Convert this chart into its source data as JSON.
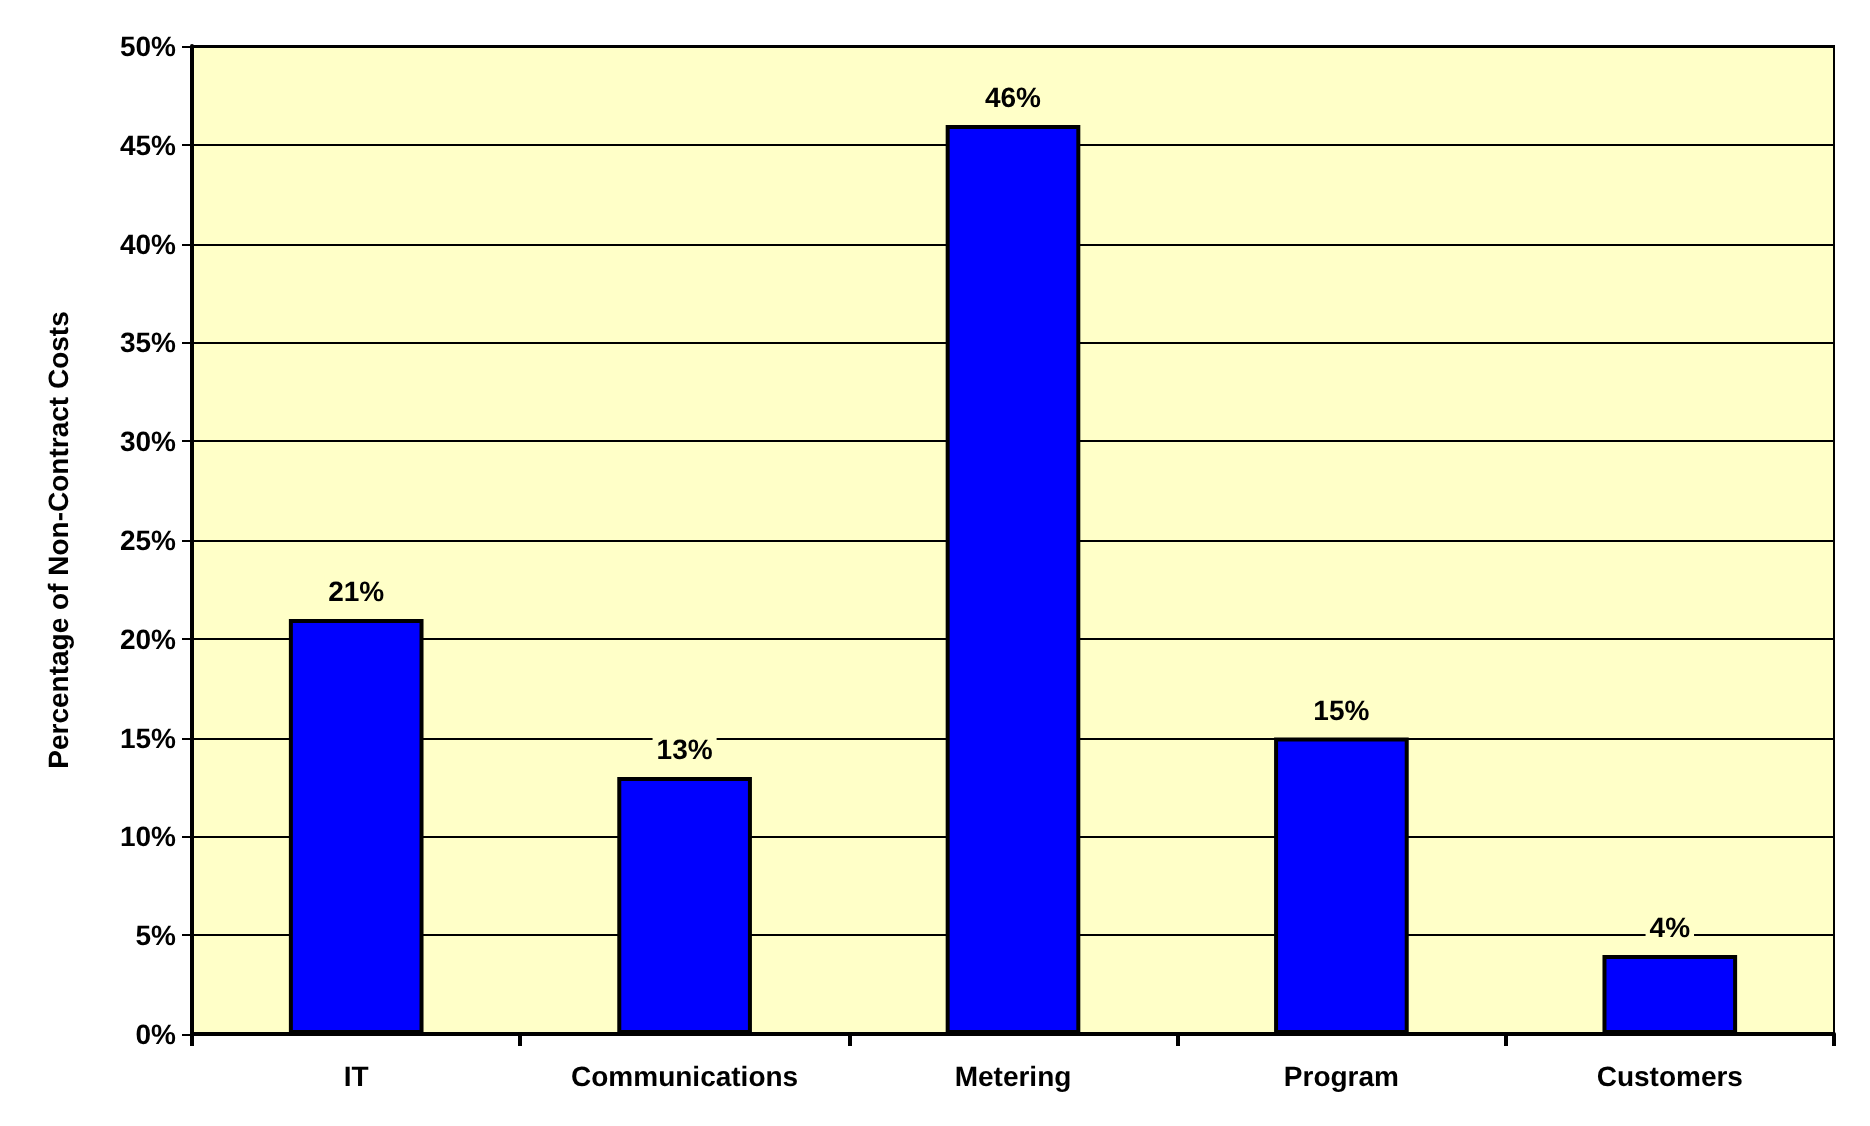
{
  "chart_data": {
    "type": "bar",
    "ylabel": "Percentage of Non-Contract Costs",
    "categories": [
      "IT",
      "Communications",
      "Metering",
      "Program",
      "Customers"
    ],
    "values": [
      21,
      13,
      46,
      15,
      4
    ],
    "value_labels": [
      "21%",
      "13%",
      "46%",
      "15%",
      "4%"
    ],
    "color": "#0000ff",
    "ylim": [
      0,
      50
    ],
    "yticks": [
      {
        "value": 0,
        "label": "0%"
      },
      {
        "value": 5,
        "label": "5%"
      },
      {
        "value": 10,
        "label": "10%"
      },
      {
        "value": 15,
        "label": "15%"
      },
      {
        "value": 20,
        "label": "20%"
      },
      {
        "value": 25,
        "label": "25%"
      },
      {
        "value": 30,
        "label": "30%"
      },
      {
        "value": 35,
        "label": "35%"
      },
      {
        "value": 40,
        "label": "40%"
      },
      {
        "value": 45,
        "label": "45%"
      },
      {
        "value": 50,
        "label": "50%"
      }
    ],
    "grid": "y"
  }
}
